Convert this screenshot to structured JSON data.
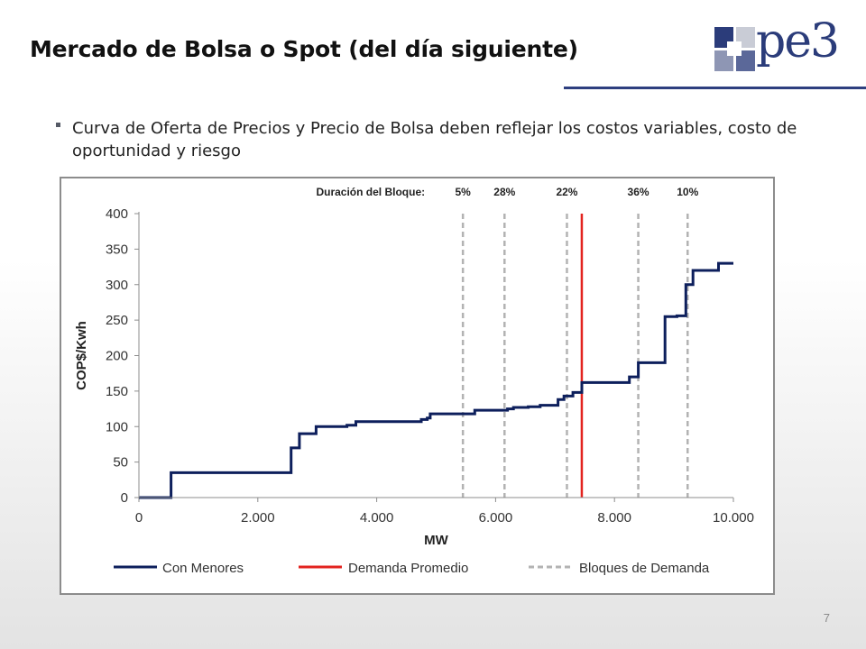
{
  "slide": {
    "title": "Mercado de Bolsa o Spot (del día siguiente)",
    "bullet": "Curva de Oferta de Precios y Precio de Bolsa deben reflejar los costos variables, costo de oportunidad y riesgo",
    "page_number": "7",
    "logo_text": "pe3"
  },
  "colors": {
    "supply": "#0d1f5c",
    "demand": "#e3231f",
    "blocks": "#b3b3b3",
    "logo": "#2b3c7a"
  },
  "chart_data": {
    "type": "line",
    "title": "",
    "xlabel": "MW",
    "ylabel": "COP$/Kwh",
    "xlim": [
      0,
      10000
    ],
    "ylim": [
      0,
      400
    ],
    "x_ticks": [
      0,
      2000,
      4000,
      6000,
      8000,
      10000
    ],
    "x_tick_labels": [
      "0",
      "2.000",
      "4.000",
      "6.000",
      "8.000",
      "10.000"
    ],
    "y_ticks": [
      0,
      50,
      100,
      150,
      200,
      250,
      300,
      350,
      400
    ],
    "y_tick_labels": [
      "0",
      "50",
      "100",
      "150",
      "200",
      "250",
      "300",
      "350",
      "400"
    ],
    "grid": false,
    "legend_position": "bottom",
    "series": [
      {
        "name": "Con Menores",
        "color": "#0d1f5c",
        "style": "step",
        "points": [
          [
            0,
            0
          ],
          [
            540,
            0
          ],
          [
            540,
            35
          ],
          [
            2560,
            35
          ],
          [
            2560,
            70
          ],
          [
            2700,
            70
          ],
          [
            2700,
            90
          ],
          [
            2980,
            90
          ],
          [
            2980,
            100
          ],
          [
            3500,
            100
          ],
          [
            3500,
            102
          ],
          [
            3650,
            102
          ],
          [
            3650,
            107
          ],
          [
            4750,
            107
          ],
          [
            4750,
            110
          ],
          [
            4850,
            110
          ],
          [
            4850,
            112
          ],
          [
            4900,
            112
          ],
          [
            4900,
            118
          ],
          [
            5650,
            118
          ],
          [
            5650,
            123
          ],
          [
            6200,
            123
          ],
          [
            6200,
            125
          ],
          [
            6300,
            125
          ],
          [
            6300,
            127
          ],
          [
            6550,
            127
          ],
          [
            6550,
            128
          ],
          [
            6750,
            128
          ],
          [
            6750,
            130
          ],
          [
            7050,
            130
          ],
          [
            7050,
            138
          ],
          [
            7150,
            138
          ],
          [
            7150,
            143
          ],
          [
            7300,
            143
          ],
          [
            7300,
            148
          ],
          [
            7450,
            148
          ],
          [
            7450,
            162
          ],
          [
            8250,
            162
          ],
          [
            8250,
            170
          ],
          [
            8400,
            170
          ],
          [
            8400,
            190
          ],
          [
            8850,
            190
          ],
          [
            8850,
            255
          ],
          [
            9050,
            255
          ],
          [
            9050,
            256
          ],
          [
            9200,
            256
          ],
          [
            9200,
            300
          ],
          [
            9320,
            300
          ],
          [
            9320,
            320
          ],
          [
            9750,
            320
          ],
          [
            9750,
            330
          ],
          [
            10000,
            330
          ]
        ]
      },
      {
        "name": "Demanda Promedio",
        "color": "#e3231f",
        "style": "vertical",
        "x": 7450,
        "y_range": [
          0,
          400
        ]
      },
      {
        "name": "Bloques de Demanda",
        "color": "#b3b3b3",
        "style": "vertical-dashed",
        "x": [
          5450,
          6150,
          7200,
          8400,
          9230
        ],
        "y_range": [
          0,
          400
        ]
      }
    ],
    "annotation_title": "Duración del Bloque:",
    "block_durations": [
      "5%",
      "28%",
      "22%",
      "36%",
      "10%"
    ]
  }
}
